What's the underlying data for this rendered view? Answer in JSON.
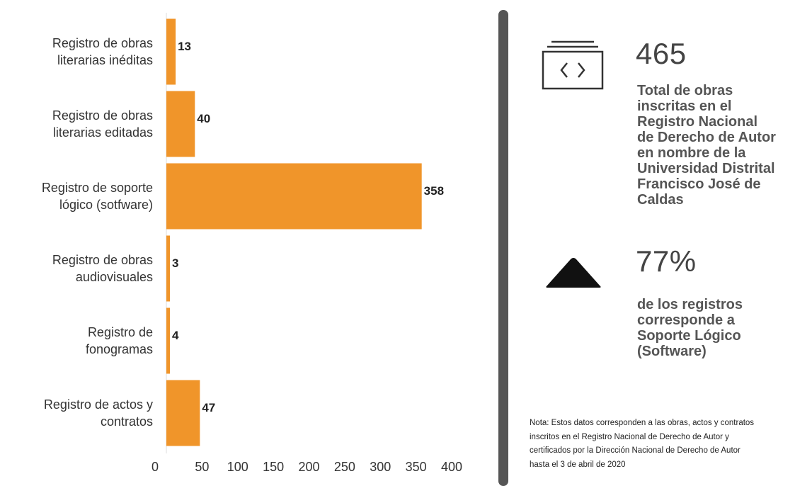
{
  "chart_data": {
    "type": "bar",
    "orientation": "horizontal",
    "categories": [
      "Registro de obras\nliterarias inéditas",
      "Registro de obras\nliterarias editadas",
      "Registro de soporte\nlógico (sotfware)",
      "Registro de obras\naudiovisuales",
      "Registro de\nfonogramas",
      "Registro de actos y\ncontratos"
    ],
    "values": [
      13,
      40,
      358,
      3,
      4,
      47
    ],
    "data_labels": [
      "13",
      "40",
      "358",
      "3",
      "4",
      "47"
    ],
    "xticks": [
      "0",
      "50",
      "100",
      "150",
      "200",
      "250",
      "300",
      "350",
      "400"
    ],
    "xlim": [
      0,
      400
    ],
    "bar_color": "#F0952A",
    "grid": false
  },
  "stats": [
    {
      "icon": "code-window-icon",
      "value": "465",
      "description": "Total de obras\ninscritas en el\nRegistro Nacional\nde Derecho de Autor\nen nombre de la\nUniversidad Distrital\nFrancisco José de\nCaldas"
    },
    {
      "icon": "triangle-up-icon",
      "value": "77%",
      "description": "de los registros\ncorresponde a\nSoporte Lógico\n(Software)"
    }
  ],
  "note": "Nota: Estos datos corresponden a las obras, actos y contratos\ninscritos en el Registro Nacional de Derecho de Autor y\ncertificados por la Dirección Nacional de Derecho de Autor\nhasta el 3 de abril de 2020",
  "colors": {
    "bar": "#F0952A",
    "divider": "#555555",
    "icon": "#222222"
  }
}
